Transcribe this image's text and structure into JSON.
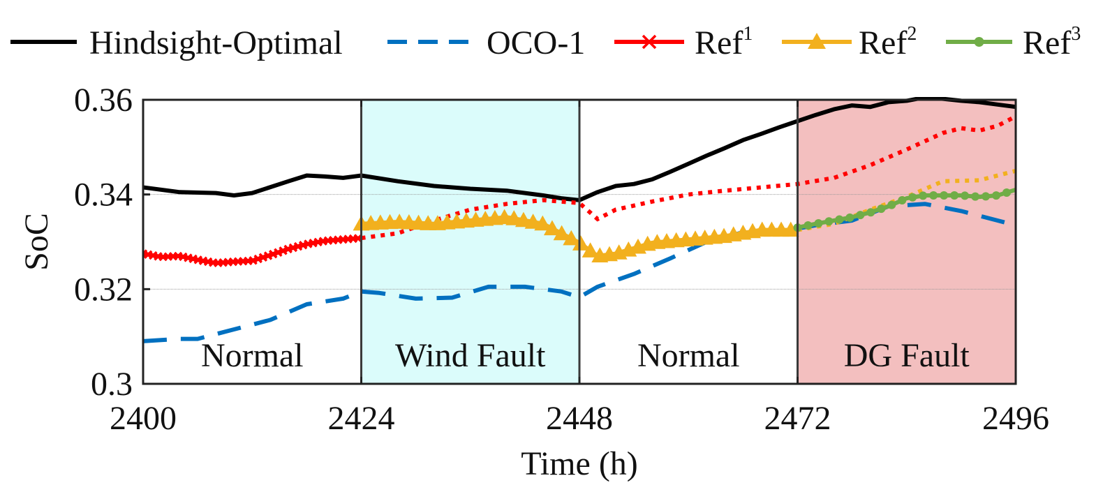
{
  "chart_data": {
    "type": "line",
    "xlabel": "Time (h)",
    "ylabel": "SoC",
    "xlim": [
      2400,
      2496
    ],
    "ylim": [
      0.3,
      0.36
    ],
    "xticks": [
      2400,
      2424,
      2448,
      2472,
      2496
    ],
    "xtick_labels": [
      "2400",
      "2424",
      "2448",
      "2472",
      "2496"
    ],
    "yticks": [
      0.3,
      0.32,
      0.34,
      0.36
    ],
    "ytick_labels": [
      "0.3",
      "0.32",
      "0.34",
      "0.36"
    ],
    "grid": "horizontal",
    "legend_position": "top",
    "regions": [
      {
        "label": "Normal",
        "x0": 2400,
        "x1": 2424,
        "color": "#ffffff"
      },
      {
        "label": "Wind Fault",
        "x0": 2424,
        "x1": 2448,
        "color": "#d9fcfb"
      },
      {
        "label": "Normal",
        "x0": 2448,
        "x1": 2472,
        "color": "#ffffff"
      },
      {
        "label": "DG Fault",
        "x0": 2472,
        "x1": 2496,
        "color": "#f2bcbc"
      }
    ],
    "series": [
      {
        "name": "Hindsight-Optimal",
        "legend_base": "Hindsight-Optimal",
        "legend_sup": "",
        "color": "#000000",
        "style": "solid",
        "marker": "none",
        "x": [
          2400,
          2404,
          2408,
          2410,
          2412,
          2416,
          2418,
          2420,
          2422,
          2424,
          2428,
          2432,
          2436,
          2440,
          2444,
          2446,
          2448,
          2450,
          2452,
          2454,
          2456,
          2458,
          2460,
          2462,
          2464,
          2466,
          2468,
          2470,
          2472,
          2474,
          2476,
          2478,
          2480,
          2482,
          2484,
          2486,
          2488,
          2490,
          2492,
          2494,
          2496
        ],
        "y": [
          0.3415,
          0.3405,
          0.3403,
          0.3398,
          0.3403,
          0.3428,
          0.344,
          0.3438,
          0.3435,
          0.344,
          0.3428,
          0.3418,
          0.3412,
          0.3408,
          0.3398,
          0.3392,
          0.3388,
          0.3405,
          0.3418,
          0.3422,
          0.3432,
          0.3448,
          0.3465,
          0.3482,
          0.3498,
          0.3515,
          0.3528,
          0.3542,
          0.3555,
          0.3568,
          0.358,
          0.3588,
          0.3585,
          0.3595,
          0.3598,
          0.3605,
          0.3602,
          0.3598,
          0.3595,
          0.359,
          0.3585
        ]
      },
      {
        "name": "OCO-1",
        "legend_base": "OCO-1",
        "legend_sup": "",
        "color": "#0070c0",
        "style": "dashed",
        "marker": "none",
        "x": [
          2400,
          2404,
          2406,
          2410,
          2414,
          2418,
          2422,
          2424,
          2426,
          2430,
          2434,
          2438,
          2442,
          2446,
          2448,
          2450,
          2454,
          2458,
          2462,
          2466,
          2470,
          2472,
          2474,
          2478,
          2482,
          2486,
          2490,
          2494,
          2496
        ],
        "y": [
          0.309,
          0.3095,
          0.3095,
          0.3115,
          0.3135,
          0.3168,
          0.318,
          0.3195,
          0.3192,
          0.318,
          0.3182,
          0.3205,
          0.3205,
          0.3195,
          0.3183,
          0.3205,
          0.3232,
          0.3265,
          0.33,
          0.332,
          0.3325,
          0.3328,
          0.3335,
          0.3345,
          0.3375,
          0.338,
          0.3365,
          0.3345,
          0.3335
        ]
      },
      {
        "name": "Ref1",
        "legend_base": "Ref",
        "legend_sup": "1",
        "color": "#ff0000",
        "style": "solid",
        "marker": "x",
        "marker_until": 2424,
        "x": [
          2400,
          2402,
          2404,
          2406,
          2408,
          2410,
          2412,
          2414,
          2416,
          2418,
          2420,
          2422,
          2424,
          2428,
          2432,
          2436,
          2440,
          2444,
          2448,
          2450,
          2452,
          2456,
          2460,
          2464,
          2468,
          2472,
          2476,
          2480,
          2484,
          2488,
          2490,
          2492,
          2494,
          2496
        ],
        "y": [
          0.3275,
          0.3268,
          0.327,
          0.3262,
          0.3255,
          0.3258,
          0.326,
          0.3272,
          0.3285,
          0.3295,
          0.3302,
          0.3305,
          0.3308,
          0.3318,
          0.3345,
          0.3368,
          0.338,
          0.3388,
          0.3382,
          0.3348,
          0.3368,
          0.3385,
          0.34,
          0.3408,
          0.3415,
          0.3422,
          0.3435,
          0.3462,
          0.3495,
          0.353,
          0.354,
          0.3535,
          0.3545,
          0.3565
        ]
      },
      {
        "name": "Ref2",
        "legend_base": "Ref",
        "legend_sup": "2",
        "color": "#f2b01e",
        "style": "solid",
        "marker": "triangle",
        "marker_from": 2424,
        "marker_until": 2472,
        "x": [
          2424,
          2428,
          2432,
          2436,
          2440,
          2444,
          2448,
          2450,
          2452,
          2456,
          2460,
          2464,
          2468,
          2472,
          2476,
          2480,
          2484,
          2488,
          2492,
          2496
        ],
        "y": [
          0.3338,
          0.3342,
          0.3338,
          0.3345,
          0.3352,
          0.3338,
          0.3298,
          0.327,
          0.3275,
          0.3298,
          0.3305,
          0.3312,
          0.3325,
          0.3325,
          0.3338,
          0.3368,
          0.3395,
          0.3428,
          0.343,
          0.345
        ]
      },
      {
        "name": "Ref3",
        "legend_base": "Ref",
        "legend_sup": "3",
        "color": "#70ad47",
        "style": "solid",
        "marker": "dot",
        "marker_from": 2472,
        "x": [
          2472,
          2474,
          2476,
          2478,
          2480,
          2482,
          2484,
          2486,
          2488,
          2490,
          2492,
          2494,
          2496
        ],
        "y": [
          0.333,
          0.3338,
          0.3345,
          0.3352,
          0.3362,
          0.3375,
          0.3392,
          0.3398,
          0.3398,
          0.3398,
          0.3395,
          0.3398,
          0.341
        ]
      }
    ]
  }
}
